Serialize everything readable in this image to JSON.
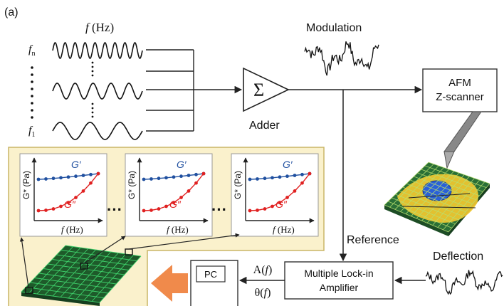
{
  "panel_label": "(a)",
  "freq_header": {
    "symbol": "f",
    "unit": " (Hz)"
  },
  "freq_labels": {
    "top_symbol": "f",
    "top_sub": "n",
    "bottom_symbol": "f",
    "bottom_sub": "1"
  },
  "modulation_label": "Modulation",
  "adder": {
    "symbol": "Σ",
    "label": "Adder"
  },
  "afm": {
    "line1": "AFM",
    "line2": "Z-scanner"
  },
  "reference_label": "Reference",
  "deflection_label": "Deflection",
  "lockin": {
    "line1": "Multiple Lock-in",
    "line2": "Amplifier"
  },
  "pc_label": "PC",
  "amplitude_label": {
    "prefix": "A(",
    "symbol": "f",
    "suffix": ")"
  },
  "phase_label": {
    "prefix": "θ(",
    "symbol": "f",
    "suffix": ")"
  },
  "ellipsis": "···",
  "plots": [
    {
      "g1": "G′",
      "g2": "G″",
      "ylabel": "G* (Pa)",
      "xsym": "f",
      "xunit": " (Hz)"
    },
    {
      "g1": "G′",
      "g2": "G″",
      "ylabel": "G* (Pa)",
      "xsym": "f",
      "xunit": " (Hz)"
    },
    {
      "g1": "G′",
      "g2": "G″",
      "ylabel": "G* (Pa)",
      "xsym": "f",
      "xunit": " (Hz)"
    }
  ],
  "colors": {
    "panel_bg": "#faf1cc",
    "panel_border": "#c9b567",
    "blue": "#2050a0",
    "red": "#e02020",
    "grid_green": "#29b34a",
    "arrow_orange": "#f08a4b",
    "sample_yellow": "#f2c830"
  }
}
